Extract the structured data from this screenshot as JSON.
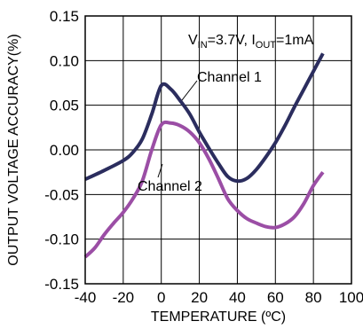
{
  "chart_data": {
    "type": "line",
    "xlabel": "TEMPERATURE (ºC)",
    "ylabel": "OUTPUT VOLTAGE ACCURACY(%)",
    "xlim": [
      -40,
      100
    ],
    "ylim": [
      -0.15,
      0.15
    ],
    "x_ticks": [
      "-40",
      "-20",
      "0",
      "20",
      "40",
      "60",
      "80",
      "100"
    ],
    "y_ticks": [
      "0.15",
      "0.10",
      "0.05",
      "0.00",
      "-0.05",
      "-0.10",
      "-0.15"
    ],
    "x_tick_values": [
      -40,
      -20,
      0,
      20,
      40,
      60,
      80,
      100
    ],
    "y_tick_values": [
      0.15,
      0.1,
      0.05,
      0.0,
      -0.05,
      -0.1,
      -0.15
    ],
    "grid": true,
    "conditions": {
      "v_main": "V",
      "v_sub": "IN",
      "v_rest": "=3.7V, I",
      "i_sub": "OUT",
      "i_rest": "=1mA"
    },
    "series": [
      {
        "name": "Channel 1",
        "color": "#2b2d5e",
        "x": [
          -40,
          -30,
          -20,
          -15,
          -10,
          -5,
          0,
          5,
          10,
          15,
          20,
          25,
          30,
          35,
          40,
          45,
          50,
          55,
          60,
          65,
          70,
          75,
          80,
          85
        ],
        "y": [
          -0.033,
          -0.023,
          -0.012,
          -0.003,
          0.012,
          0.04,
          0.072,
          0.068,
          0.055,
          0.04,
          0.02,
          0.002,
          -0.015,
          -0.03,
          -0.035,
          -0.032,
          -0.022,
          -0.008,
          0.008,
          0.027,
          0.048,
          0.068,
          0.088,
          0.108
        ]
      },
      {
        "name": "Channel 2",
        "color": "#9b4ea5",
        "x": [
          -40,
          -35,
          -30,
          -25,
          -20,
          -15,
          -10,
          -5,
          0,
          5,
          10,
          15,
          20,
          25,
          30,
          35,
          40,
          45,
          50,
          55,
          60,
          65,
          70,
          75,
          80,
          85
        ],
        "y": [
          -0.12,
          -0.11,
          -0.095,
          -0.082,
          -0.07,
          -0.055,
          -0.035,
          0.0,
          0.028,
          0.03,
          0.027,
          0.02,
          0.008,
          -0.01,
          -0.032,
          -0.055,
          -0.068,
          -0.077,
          -0.082,
          -0.086,
          -0.087,
          -0.083,
          -0.075,
          -0.06,
          -0.04,
          -0.025
        ]
      }
    ]
  }
}
